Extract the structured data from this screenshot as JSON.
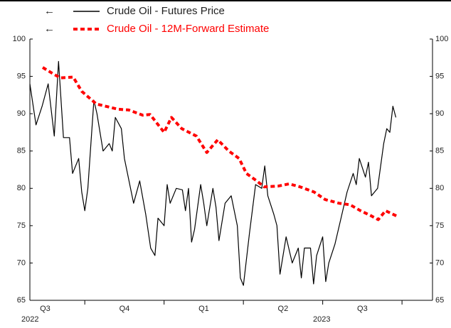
{
  "chart_data": {
    "type": "line",
    "series": [
      {
        "name": "Crude Oil - Futures Price",
        "color": "#000000",
        "dashed": false,
        "x": [
          0,
          1,
          2,
          3,
          4,
          4.7,
          5.5,
          6.5,
          7,
          8,
          8.5,
          9,
          9.5,
          10,
          10.5,
          11,
          12,
          13,
          13.5,
          14,
          15,
          15.5,
          16,
          17,
          18,
          19,
          19.8,
          20.5,
          21,
          22,
          22.5,
          23,
          24,
          25,
          25.5,
          26,
          26.5,
          27,
          28,
          28.5,
          29,
          30,
          30.5,
          31,
          32,
          33,
          34,
          34.5,
          35,
          36,
          37,
          38,
          38.5,
          39,
          40,
          40.5,
          41,
          42,
          43,
          44,
          44.5,
          45,
          46,
          46.5,
          47,
          48,
          48.5,
          49,
          50,
          51,
          52,
          53,
          53.5,
          54,
          55,
          55.5,
          56,
          57,
          58,
          58.5,
          59,
          59.5,
          60
        ],
        "values": [
          94,
          88.5,
          91,
          94,
          87,
          97,
          86.8,
          86.8,
          82,
          84,
          79.5,
          77,
          80,
          86,
          91.8,
          90,
          85,
          86,
          85,
          89.5,
          88,
          84,
          82,
          78,
          81,
          76.5,
          72,
          71,
          76,
          75,
          80.5,
          78,
          80,
          79.8,
          77,
          80,
          72.8,
          74.5,
          80.5,
          78,
          75,
          80,
          77.5,
          73,
          78,
          79,
          75,
          68,
          67,
          74,
          80.5,
          80,
          83,
          79,
          76.5,
          75,
          68.5,
          73.5,
          70,
          72,
          68,
          72,
          72,
          67.2,
          71,
          73.5,
          67.5,
          70,
          72.5,
          76,
          79.5,
          82,
          80.5,
          84,
          81.5,
          83.5,
          79,
          80,
          86,
          88,
          87.5,
          91,
          89.5
        ]
      },
      {
        "name": "Crude Oil - 12M-Forward Estimate",
        "color": "#ff0000",
        "dashed": true,
        "x": [
          2.1,
          3.9,
          5,
          7.1,
          8.5,
          10.9,
          14.4,
          16.2,
          18.5,
          19.7,
          22,
          23.2,
          24.9,
          27.3,
          29,
          30.8,
          32.6,
          34.3,
          35.5,
          37.2,
          38.4,
          40.7,
          42.5,
          44.3,
          46.6,
          48.4,
          50.7,
          52.5,
          54.2,
          56,
          57.1,
          58.3,
          60.1
        ],
        "values": [
          96.2,
          95.3,
          94.8,
          94.9,
          93,
          91.3,
          90.6,
          90.5,
          89.8,
          89.9,
          87.5,
          89.5,
          88,
          87,
          84.8,
          86.5,
          85,
          84,
          82,
          81,
          80.2,
          80.3,
          80.6,
          80.2,
          79.5,
          78.5,
          78,
          77.8,
          77,
          76.3,
          75.8,
          77,
          76.3
        ]
      }
    ],
    "xlim": [
      0,
      66
    ],
    "xticks": [
      9,
      22,
      35,
      48,
      61
    ],
    "categories": [
      "Q3",
      "Q4",
      "Q1",
      "Q2",
      "Q3"
    ],
    "years": [
      "2022",
      "2023"
    ],
    "ylim": [
      65,
      100
    ],
    "yticks": [
      65,
      70,
      75,
      80,
      85,
      90,
      95,
      100
    ],
    "grid": false
  }
}
